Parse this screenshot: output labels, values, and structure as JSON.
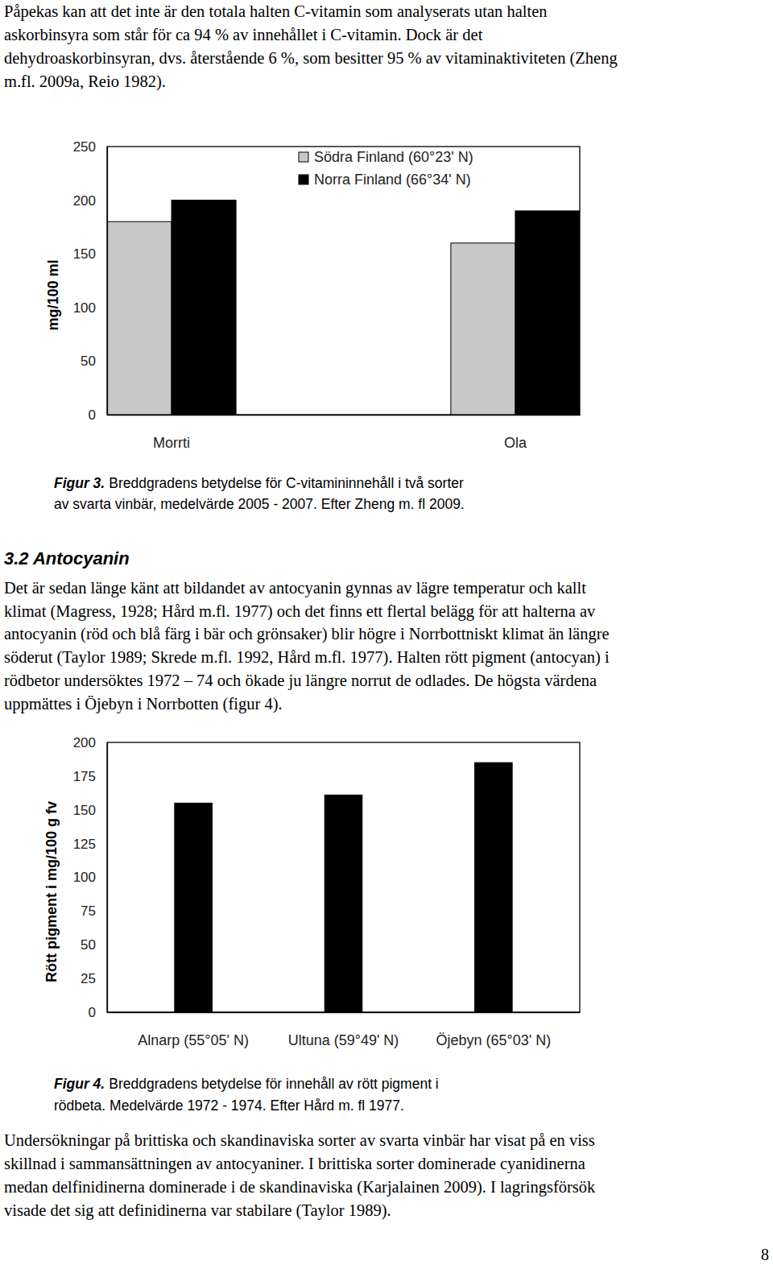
{
  "paragraphs": [
    [
      "Påpekas kan att det inte är den totala halten C-vitamin som analyserats utan halten",
      "askorbinsyra som står för ca 94 % av innehållet i C-vitamin. Dock är det",
      "dehydroaskorbinsyran, dvs. återstående 6 %, som besitter 95 % av vitaminaktiviteten (Zheng",
      "m.fl. 2009a, Reio 1982)."
    ],
    [
      "Det är sedan länge känt att bildandet av antocyanin gynnas av lägre temperatur och kallt",
      "klimat (Magress, 1928; Hård m.fl. 1977) och det finns ett flertal belägg för att halterna av",
      "antocyanin (röd och blå färg i bär och grönsaker) blir högre i Norrbottniskt klimat än längre",
      "söderut (Taylor 1989; Skrede m.fl. 1992, Hård m.fl. 1977). Halten rött pigment (antocyan) i",
      "rödbetor undersöktes 1972 – 74 och ökade ju längre norrut de odlades. De högsta värdena",
      "uppmättes i Öjebyn i Norrbotten (figur 4)."
    ],
    [
      "Undersökningar på brittiska och skandinaviska sorter av svarta vinbär har visat på en viss",
      "skillnad i sammansättningen av antocyaniner. I brittiska sorter dominerade cyanidinerna",
      "medan delfinidinerna dominerade i de skandinaviska (Karjalainen 2009). I lagringsförsök",
      "visade det sig att definidinerna var stabilare (Taylor 1989)."
    ]
  ],
  "heading": "3.2 Antocyanin",
  "captions": [
    {
      "label": "Figur 3.",
      "lines": [
        "Breddgradens betydelse för C-vitamininnehåll i två sorter",
        "av svarta vinbär, medelvärde 2005 - 2007. Efter Zheng m. fl 2009."
      ]
    },
    {
      "label": "Figur 4.",
      "lines": [
        "Breddgradens betydelse för innehåll av rött pigment i",
        "rödbeta. Medelvärde 1972 - 1974. Efter Hård m. fl 1977."
      ]
    }
  ],
  "page_number": "8",
  "chart_data": [
    {
      "type": "bar",
      "y_label": "mg/100 ml",
      "categories": [
        "Morrti",
        "Ola"
      ],
      "series": [
        {
          "name": "Södra Finland (60°23' N)",
          "color": "#c8c8c8",
          "values": [
            180,
            160
          ]
        },
        {
          "name": "Norra Finland (66°34' N)",
          "color": "#000000",
          "values": [
            200,
            190
          ]
        }
      ],
      "ylim": [
        0,
        250
      ],
      "yticks": [
        0,
        50,
        100,
        150,
        200,
        250
      ],
      "legend": "top right"
    },
    {
      "type": "bar",
      "y_label": "Rött pigment i mg/100 g fv",
      "categories": [
        "Alnarp (55°05' N)",
        "Ultuna (59°49' N)",
        "Öjebyn (65°03' N)"
      ],
      "values": [
        155,
        161,
        185
      ],
      "color": "#000000",
      "ylim": [
        0,
        200
      ],
      "yticks": [
        0,
        25,
        50,
        75,
        100,
        125,
        150,
        175,
        200
      ]
    }
  ]
}
